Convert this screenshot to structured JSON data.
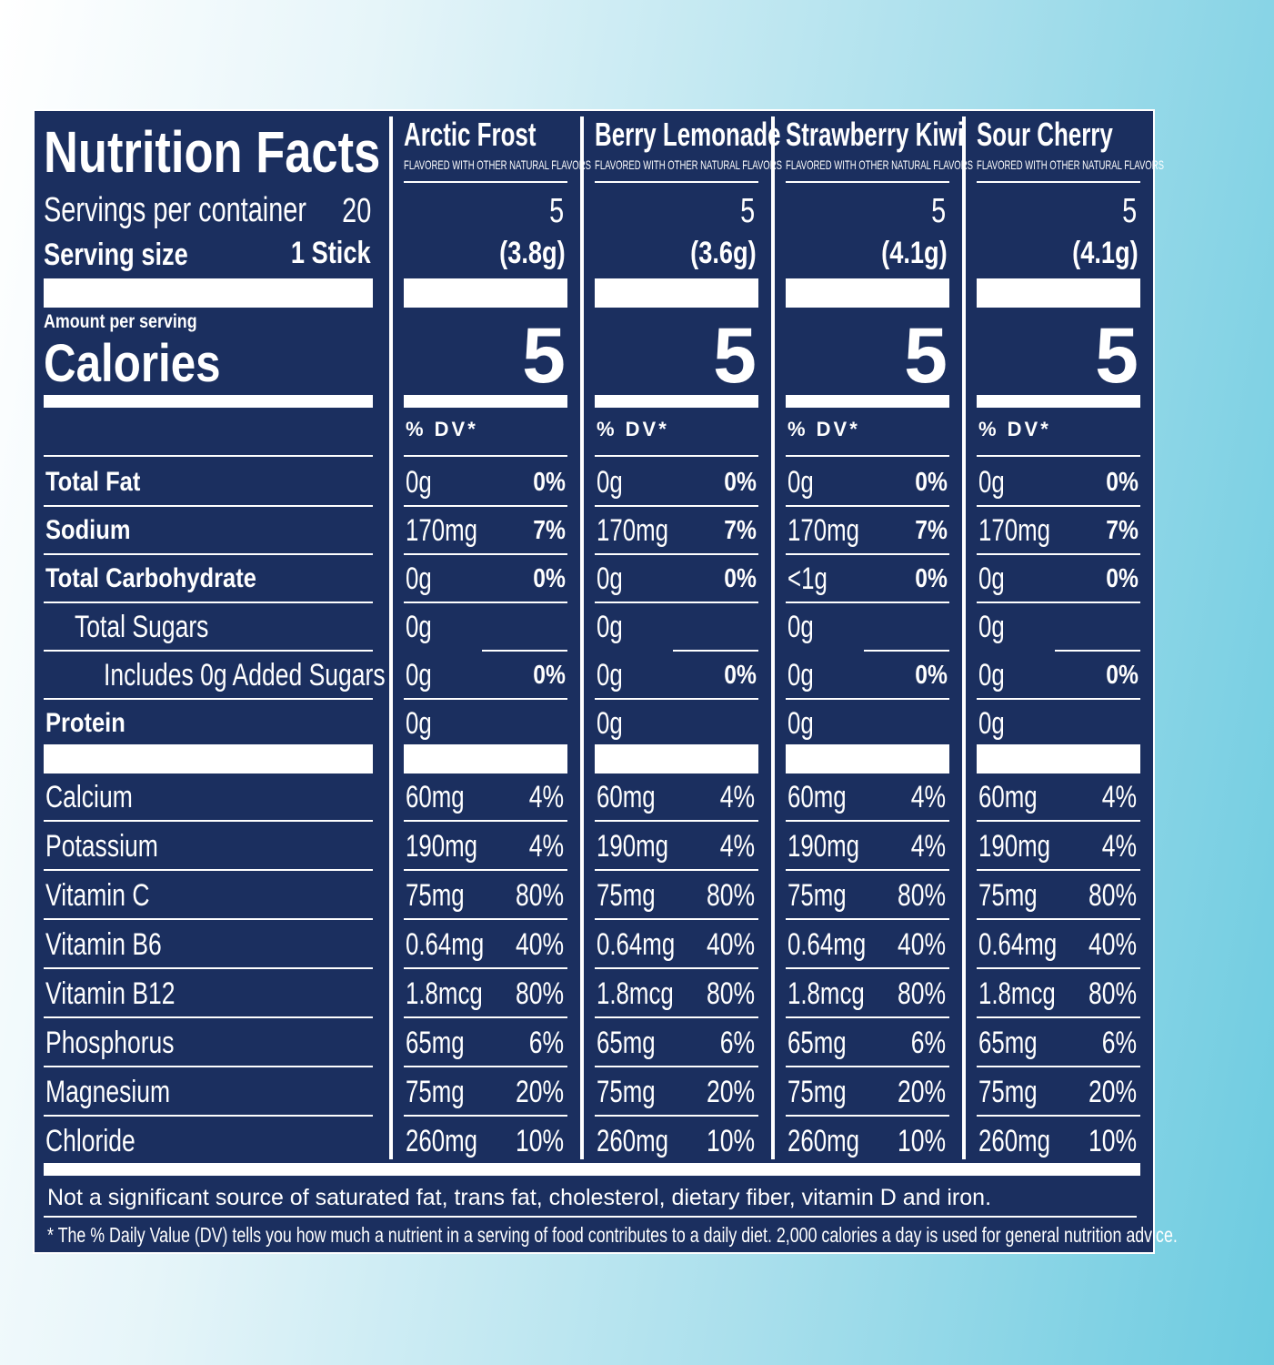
{
  "header": {
    "title": "Nutrition Facts",
    "servings_label": "Servings per container",
    "servings": "20",
    "serving_size_label": "Serving size",
    "serving_size": "1 Stick",
    "amount_label": "Amount per serving",
    "calories_label": "Calories",
    "dv_label": "% DV*"
  },
  "flavors": [
    {
      "name": "Arctic Frost",
      "note": "FLAVORED WITH OTHER NATURAL FLAVORS",
      "servings": "5",
      "serving_size": "(3.8g)",
      "calories": "5"
    },
    {
      "name": "Berry Lemonade",
      "note": "FLAVORED WITH OTHER NATURAL FLAVORS",
      "servings": "5",
      "serving_size": "(3.6g)",
      "calories": "5"
    },
    {
      "name": "Strawberry Kiwi",
      "note": "FLAVORED WITH OTHER NATURAL FLAVORS",
      "servings": "5",
      "serving_size": "(4.1g)",
      "calories": "5"
    },
    {
      "name": "Sour Cherry",
      "note": "FLAVORED WITH OTHER NATURAL FLAVORS",
      "servings": "5",
      "serving_size": "(4.1g)",
      "calories": "5"
    }
  ],
  "nutrients": [
    {
      "label": "Total Fat",
      "amounts": [
        "0g",
        "0g",
        "0g",
        "0g"
      ],
      "dv": [
        "0%",
        "0%",
        "0%",
        "0%"
      ]
    },
    {
      "label": "Sodium",
      "amounts": [
        "170mg",
        "170mg",
        "170mg",
        "170mg"
      ],
      "dv": [
        "7%",
        "7%",
        "7%",
        "7%"
      ]
    },
    {
      "label": "Total Carbohydrate",
      "amounts": [
        "0g",
        "0g",
        "<1g",
        "0g"
      ],
      "dv": [
        "0%",
        "0%",
        "0%",
        "0%"
      ]
    },
    {
      "label": "Total Sugars",
      "amounts": [
        "0g",
        "0g",
        "0g",
        "0g"
      ],
      "dv": [
        null,
        null,
        null,
        null
      ]
    },
    {
      "label": "Includes 0g Added Sugars",
      "amounts": [
        "0g",
        "0g",
        "0g",
        "0g"
      ],
      "dv": [
        "0%",
        "0%",
        "0%",
        "0%"
      ]
    },
    {
      "label": "Protein",
      "amounts": [
        "0g",
        "0g",
        "0g",
        "0g"
      ],
      "dv": [
        null,
        null,
        null,
        null
      ]
    }
  ],
  "vitamins_minerals": [
    {
      "label": "Calcium",
      "amounts": [
        "60mg",
        "60mg",
        "60mg",
        "60mg"
      ],
      "dv": [
        "4%",
        "4%",
        "4%",
        "4%"
      ]
    },
    {
      "label": "Potassium",
      "amounts": [
        "190mg",
        "190mg",
        "190mg",
        "190mg"
      ],
      "dv": [
        "4%",
        "4%",
        "4%",
        "4%"
      ]
    },
    {
      "label": "Vitamin C",
      "amounts": [
        "75mg",
        "75mg",
        "75mg",
        "75mg"
      ],
      "dv": [
        "80%",
        "80%",
        "80%",
        "80%"
      ]
    },
    {
      "label": "Vitamin B6",
      "amounts": [
        "0.64mg",
        "0.64mg",
        "0.64mg",
        "0.64mg"
      ],
      "dv": [
        "40%",
        "40%",
        "40%",
        "40%"
      ]
    },
    {
      "label": "Vitamin B12",
      "amounts": [
        "1.8mcg",
        "1.8mcg",
        "1.8mcg",
        "1.8mcg"
      ],
      "dv": [
        "80%",
        "80%",
        "80%",
        "80%"
      ]
    },
    {
      "label": "Phosphorus",
      "amounts": [
        "65mg",
        "65mg",
        "65mg",
        "65mg"
      ],
      "dv": [
        "6%",
        "6%",
        "6%",
        "6%"
      ]
    },
    {
      "label": "Magnesium",
      "amounts": [
        "75mg",
        "75mg",
        "75mg",
        "75mg"
      ],
      "dv": [
        "20%",
        "20%",
        "20%",
        "20%"
      ]
    },
    {
      "label": "Chloride",
      "amounts": [
        "260mg",
        "260mg",
        "260mg",
        "260mg"
      ],
      "dv": [
        "10%",
        "10%",
        "10%",
        "10%"
      ]
    }
  ],
  "footnotes": {
    "not_significant": "Not a significant source of saturated fat, trans fat, cholesterol, dietary fiber, vitamin D and iron.",
    "dv_note": "* The % Daily Value (DV) tells you how much a nutrient in a serving of food contributes to a daily diet. 2,000 calories a day is used for general nutrition advice."
  }
}
